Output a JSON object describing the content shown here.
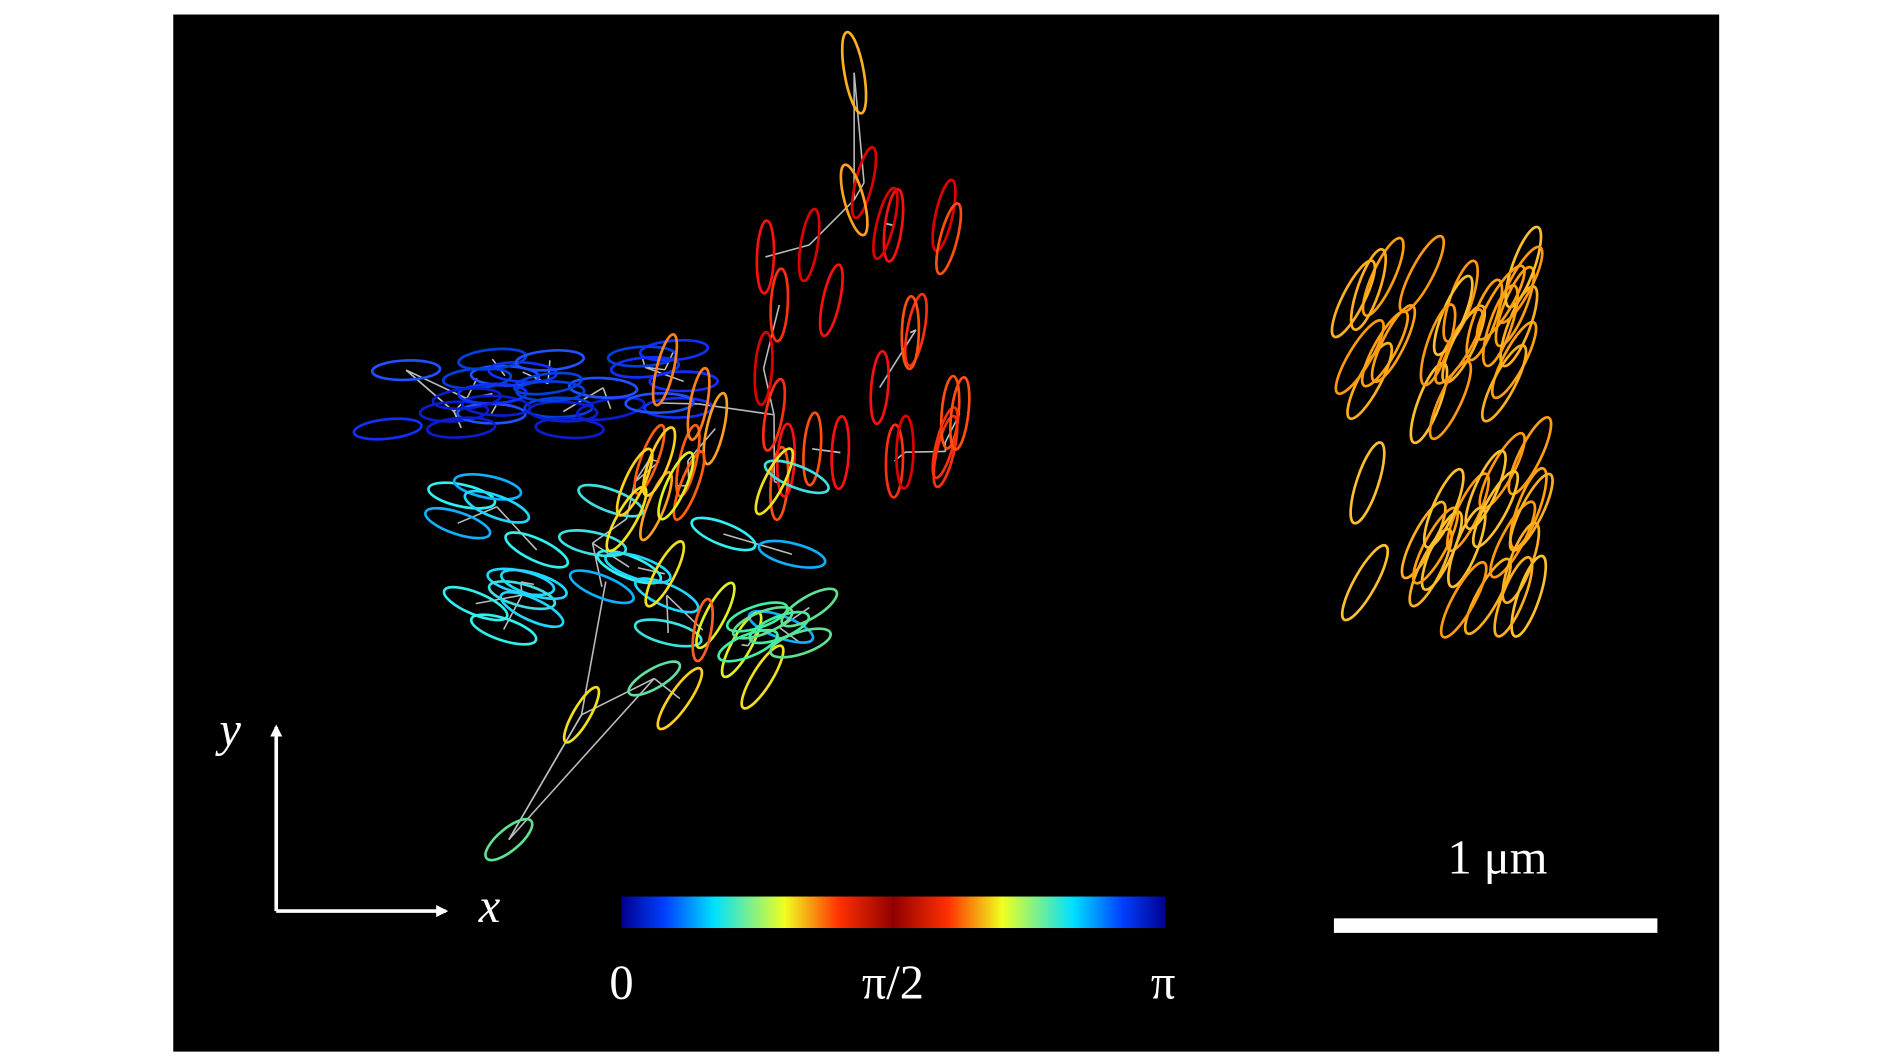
{
  "axes": {
    "y": "y",
    "x": "x"
  },
  "colorbar": {
    "labels": [
      "0",
      "π/2",
      "π"
    ]
  },
  "scale_bar": {
    "label": "1 μm"
  }
}
